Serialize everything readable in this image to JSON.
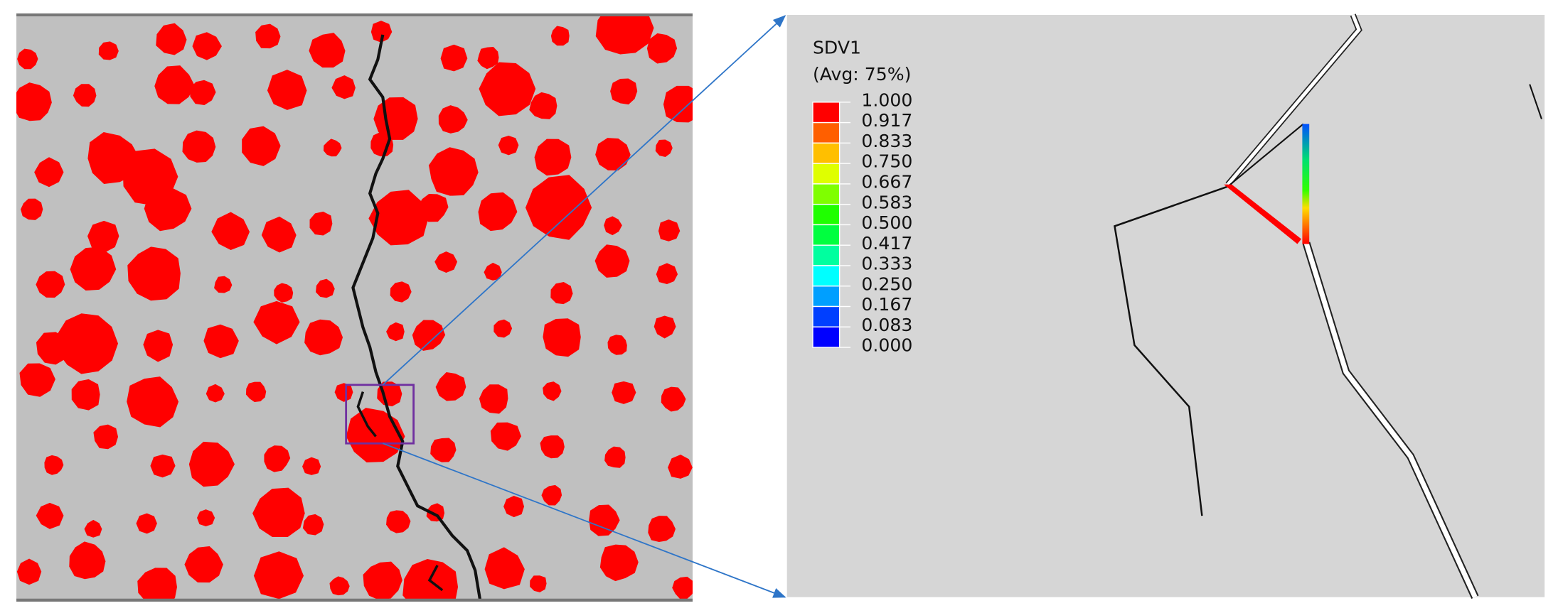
{
  "legend": {
    "title": "SDV1",
    "subtitle": "(Avg: 75%)",
    "levels": [
      "1.000",
      "0.917",
      "0.833",
      "0.750",
      "0.667",
      "0.583",
      "0.500",
      "0.417",
      "0.333",
      "0.250",
      "0.167",
      "0.083",
      "0.000"
    ],
    "colors": [
      "#ff0000",
      "#ff5f00",
      "#ffbf00",
      "#dfff00",
      "#7fff00",
      "#1fff00",
      "#00ff3f",
      "#00ff9f",
      "#00ffff",
      "#009fff",
      "#003fff",
      "#0000ff"
    ]
  }
}
